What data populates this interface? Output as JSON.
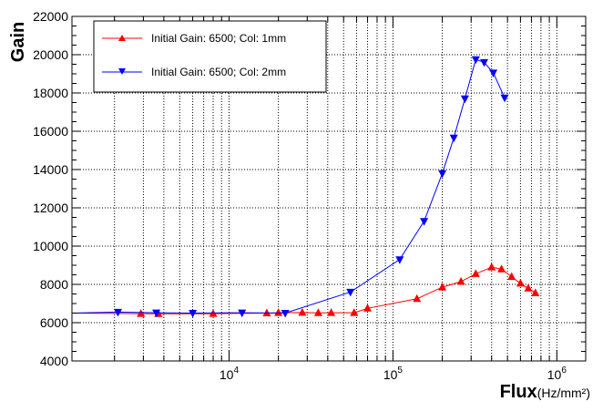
{
  "chart_data": {
    "type": "line",
    "ylabel": "Gain",
    "xlabel": "Flux",
    "xlabel_unit": "(Hz/mm²)",
    "xscale": "log",
    "xlim": [
      1100,
      1500000
    ],
    "ylim": [
      4000,
      22000
    ],
    "grid": true,
    "legend_position": "top-left",
    "yticks": [
      "4000",
      "6000",
      "8000",
      "10000",
      "12000",
      "14000",
      "16000",
      "18000",
      "20000",
      "22000"
    ],
    "xticks": [
      {
        "base": "10",
        "exp": "4",
        "value": 10000
      },
      {
        "base": "10",
        "exp": "5",
        "value": 100000
      },
      {
        "base": "10",
        "exp": "6",
        "value": 1000000
      }
    ],
    "series": [
      {
        "name": "Initial Gain: 6500; Col: 1mm",
        "color": "#ff0000",
        "marker": "triangle-up",
        "x": [
          1100,
          2900,
          3700,
          8000,
          17000,
          20000,
          28000,
          35000,
          42000,
          58000,
          70000,
          140000,
          200000,
          260000,
          320000,
          400000,
          460000,
          530000,
          600000,
          670000,
          740000
        ],
        "y": [
          6500,
          6470,
          6460,
          6470,
          6500,
          6520,
          6530,
          6510,
          6520,
          6520,
          6750,
          7250,
          7850,
          8150,
          8550,
          8900,
          8800,
          8400,
          8050,
          7800,
          7550
        ]
      },
      {
        "name": "Initial Gain: 6500; Col: 2mm",
        "color": "#0000ff",
        "marker": "triangle-down",
        "x": [
          1100,
          2100,
          3600,
          6000,
          12000,
          22000,
          55000,
          110000,
          155000,
          200000,
          235000,
          275000,
          320000,
          360000,
          410000,
          480000
        ],
        "y": [
          6500,
          6550,
          6520,
          6500,
          6520,
          6500,
          7600,
          9300,
          11300,
          13800,
          15650,
          17700,
          19750,
          19600,
          19050,
          17750
        ]
      }
    ]
  }
}
